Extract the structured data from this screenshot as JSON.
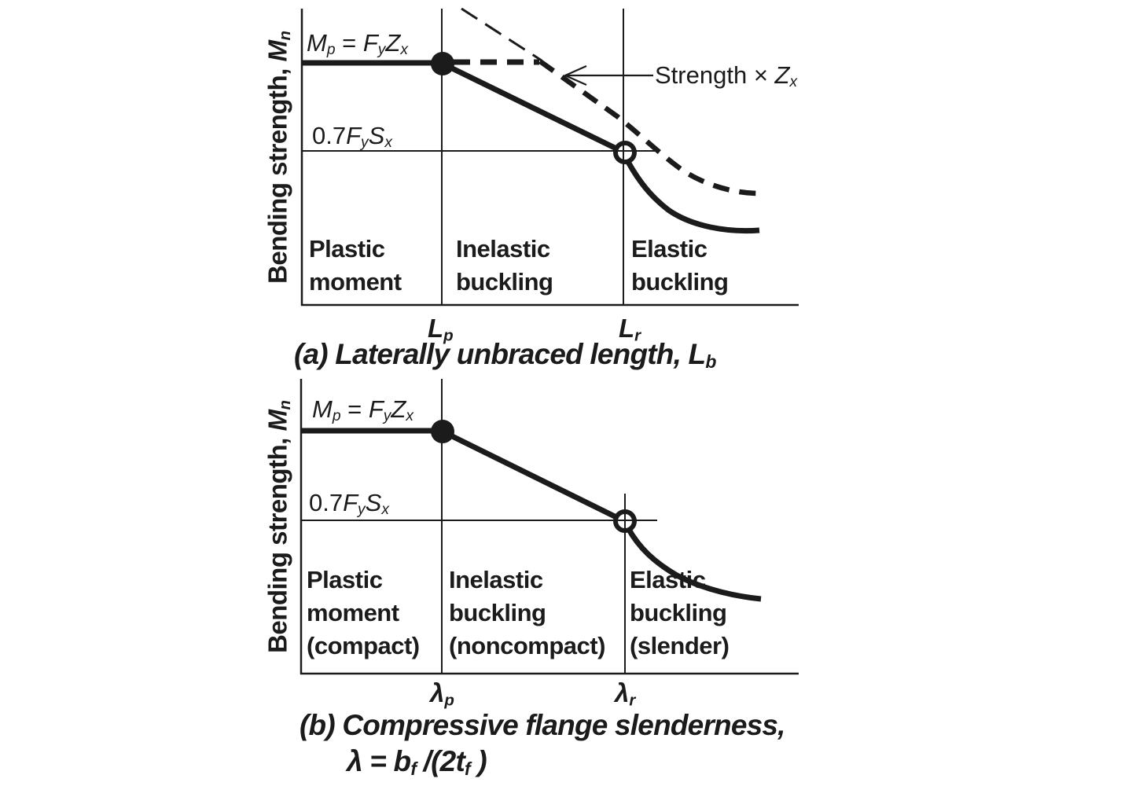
{
  "figure": {
    "background": "#ffffff",
    "ink": "#1b1b1b"
  },
  "charts": {
    "a": {
      "y_axis_label": [
        {
          "t": "Bending strength, "
        },
        {
          "t": "M",
          "i": 1
        },
        {
          "t": "n",
          "i": 1,
          "sub": 1
        }
      ],
      "mp_label": [
        {
          "t": "M",
          "i": 1
        },
        {
          "t": "p",
          "i": 1,
          "sub": 1
        },
        {
          "t": " = "
        },
        {
          "t": "F",
          "i": 1
        },
        {
          "t": "y",
          "i": 1,
          "sub": 1
        },
        {
          "t": "Z",
          "i": 1
        },
        {
          "t": "x",
          "i": 1,
          "sub": 1
        }
      ],
      "s07_label": [
        {
          "t": "0.7"
        },
        {
          "t": "F",
          "i": 1
        },
        {
          "t": "y",
          "i": 1,
          "sub": 1
        },
        {
          "t": "S",
          "i": 1
        },
        {
          "t": "x",
          "i": 1,
          "sub": 1
        }
      ],
      "strength_label": [
        {
          "t": "Strength "
        },
        {
          "t": "× "
        },
        {
          "t": "Z",
          "i": 1
        },
        {
          "t": "x",
          "i": 1,
          "sub": 1
        }
      ],
      "regions": [
        [
          "Plastic",
          "moment"
        ],
        [
          "Inelastic",
          "buckling"
        ],
        [
          "Elastic",
          "buckling"
        ]
      ],
      "tick_lp": [
        {
          "t": "L"
        },
        {
          "t": "p",
          "sub": 1
        }
      ],
      "tick_lr": [
        {
          "t": "L"
        },
        {
          "t": "r",
          "sub": 1
        }
      ],
      "caption": [
        {
          "t": "(a) Laterally unbraced length, "
        },
        {
          "t": "L"
        },
        {
          "t": "b",
          "sub": 1
        }
      ]
    },
    "b": {
      "y_axis_label": [
        {
          "t": "Bending strength, "
        },
        {
          "t": "M",
          "i": 1
        },
        {
          "t": "n",
          "i": 1,
          "sub": 1
        }
      ],
      "mp_label": [
        {
          "t": "M",
          "i": 1
        },
        {
          "t": "p",
          "i": 1,
          "sub": 1
        },
        {
          "t": " = "
        },
        {
          "t": "F",
          "i": 1
        },
        {
          "t": "y",
          "i": 1,
          "sub": 1
        },
        {
          "t": "Z",
          "i": 1
        },
        {
          "t": "x",
          "i": 1,
          "sub": 1
        }
      ],
      "s07_label": [
        {
          "t": "0.7"
        },
        {
          "t": "F",
          "i": 1
        },
        {
          "t": "y",
          "i": 1,
          "sub": 1
        },
        {
          "t": "S",
          "i": 1
        },
        {
          "t": "x",
          "i": 1,
          "sub": 1
        }
      ],
      "regions": [
        [
          "Plastic",
          "moment",
          "(compact)"
        ],
        [
          "Inelastic",
          "buckling",
          "(noncompact)"
        ],
        [
          "Elastic",
          "buckling",
          "(slender)"
        ]
      ],
      "tick_lp": [
        {
          "t": "λ"
        },
        {
          "t": "p",
          "sub": 1
        }
      ],
      "tick_lr": [
        {
          "t": "λ"
        },
        {
          "t": "r",
          "sub": 1
        }
      ],
      "caption_line1": "(b) Compressive flange slenderness,",
      "caption_line2": [
        {
          "t": "λ = b"
        },
        {
          "t": "f",
          "sub": 1
        },
        {
          "t": " /(2"
        },
        {
          "t": "t"
        },
        {
          "t": "f",
          "sub": 1
        },
        {
          "t": " )"
        }
      ]
    }
  },
  "chart_data": [
    {
      "type": "line",
      "title": "(a) Laterally unbraced length, Lb",
      "xlabel": "Laterally unbraced length, Lb",
      "ylabel": "Bending strength, Mn",
      "x_ticks": [
        "Lp",
        "Lr"
      ],
      "y_reference_levels": [
        {
          "label": "Mp = FyZx",
          "value_fraction_of_Mp": 1.0
        },
        {
          "label": "0.7FySx",
          "value_fraction_of_Mp": 0.64
        }
      ],
      "regions": [
        "Plastic moment",
        "Inelastic buckling",
        "Elastic buckling"
      ],
      "grid": false,
      "axis_style": "schematic (no numeric scale)",
      "series": [
        {
          "name": "Nominal bending strength Mn",
          "style": "solid",
          "markers": [
            {
              "type": "filled-dot",
              "x_tick": "Lp",
              "y_fraction_of_Mp": 1.0
            },
            {
              "type": "open-circle",
              "x_tick": "Lr",
              "y_fraction_of_Mp": 0.64
            }
          ],
          "points_norm_x_vs_Mp": [
            [
              0.0,
              1.0
            ],
            [
              0.28,
              1.0
            ],
            [
              0.65,
              0.64
            ],
            [
              0.7,
              0.5
            ],
            [
              0.77,
              0.4
            ],
            [
              0.85,
              0.34
            ],
            [
              0.92,
              0.31
            ]
          ]
        },
        {
          "name": "Strength × Zx",
          "style": "dashed",
          "points_norm_x_vs_Mp": [
            [
              0.28,
              1.0
            ],
            [
              0.48,
              1.0
            ],
            [
              0.65,
              0.76
            ],
            [
              0.73,
              0.62
            ],
            [
              0.8,
              0.52
            ],
            [
              0.88,
              0.47
            ],
            [
              0.93,
              0.46
            ]
          ]
        }
      ],
      "annotations": [
        {
          "text": "Strength × Zx",
          "arrow": "points left to dashed curve"
        }
      ],
      "legend": "none"
    },
    {
      "type": "line",
      "title": "(b) Compressive flange slenderness, λ = bf/(2tf)",
      "xlabel": "Compressive flange slenderness, λ = bf/(2tf)",
      "ylabel": "Bending strength, Mn",
      "x_ticks": [
        "λp",
        "λr"
      ],
      "y_reference_levels": [
        {
          "label": "Mp = FyZx",
          "value_fraction_of_Mp": 1.0
        },
        {
          "label": "0.7FySx",
          "value_fraction_of_Mp": 0.63
        }
      ],
      "regions": [
        "Plastic moment (compact)",
        "Inelastic buckling (noncompact)",
        "Elastic buckling (slender)"
      ],
      "grid": false,
      "axis_style": "schematic (no numeric scale)",
      "series": [
        {
          "name": "Nominal bending strength Mn",
          "style": "solid",
          "markers": [
            {
              "type": "filled-dot",
              "x_tick": "λp",
              "y_fraction_of_Mp": 1.0
            },
            {
              "type": "open-circle",
              "x_tick": "λr",
              "y_fraction_of_Mp": 0.63
            }
          ],
          "points_norm_x_vs_Mp": [
            [
              0.0,
              1.0
            ],
            [
              0.28,
              1.0
            ],
            [
              0.65,
              0.63
            ],
            [
              0.71,
              0.49
            ],
            [
              0.79,
              0.39
            ],
            [
              0.87,
              0.33
            ],
            [
              0.93,
              0.31
            ]
          ]
        }
      ],
      "annotations": [],
      "legend": "none"
    }
  ]
}
